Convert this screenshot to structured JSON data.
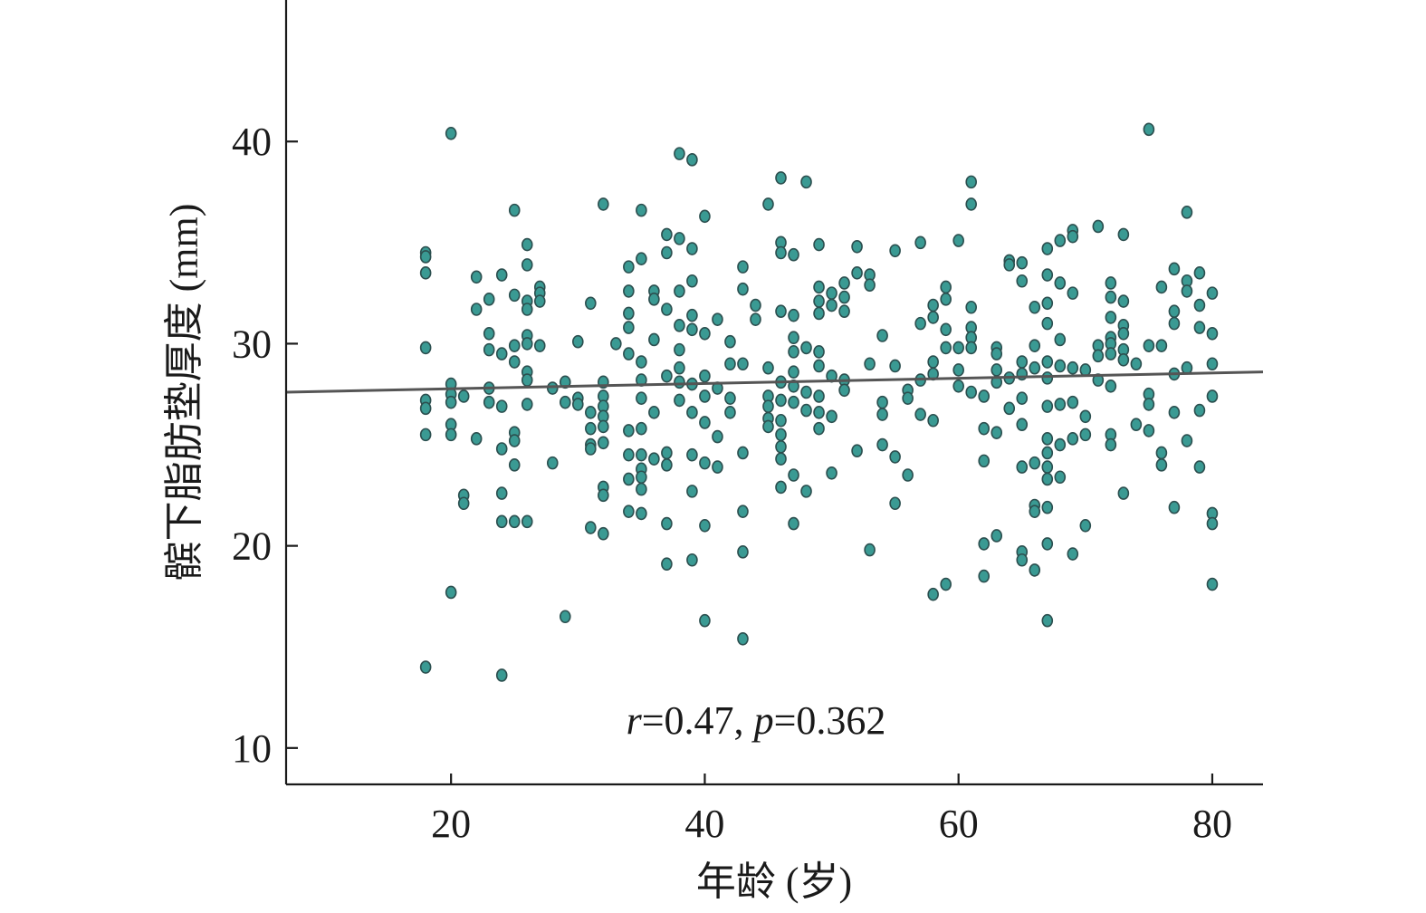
{
  "chart_data": {
    "type": "scatter",
    "xlabel": "年龄 (岁)",
    "ylabel": "髌下脂肪垫厚度 (mm)",
    "xlim": [
      7,
      84
    ],
    "ylim": [
      8.2,
      47
    ],
    "x_ticks": [
      20,
      40,
      60,
      80
    ],
    "y_ticks": [
      10,
      20,
      30,
      40
    ],
    "x_tick_labels": [
      "20",
      "40",
      "60",
      "80"
    ],
    "y_tick_labels": [
      "10",
      "20",
      "30",
      "40"
    ],
    "grid": false,
    "legend": "none",
    "colors": {
      "point": "#3a9a93",
      "point_edge": "#2c4f4f",
      "fit_line": "#555555",
      "axis": "#1a1a1a"
    },
    "annotation": {
      "r_label": "r",
      "r_value": "=0.47, ",
      "p_label": "p",
      "p_value": "=0.362"
    },
    "fit_line": {
      "x": [
        7,
        84
      ],
      "y": [
        27.6,
        28.6
      ]
    },
    "points": [
      [
        18,
        34.5
      ],
      [
        18,
        34.3
      ],
      [
        18,
        33.5
      ],
      [
        18,
        29.8
      ],
      [
        18,
        27.2
      ],
      [
        18,
        26.8
      ],
      [
        18,
        25.5
      ],
      [
        18,
        14
      ],
      [
        20,
        40.4
      ],
      [
        20,
        28
      ],
      [
        20,
        27.5
      ],
      [
        20,
        27.1
      ],
      [
        20,
        26
      ],
      [
        20,
        25.5
      ],
      [
        20,
        17.7
      ],
      [
        21,
        27.4
      ],
      [
        21,
        22.5
      ],
      [
        21,
        22.1
      ],
      [
        22,
        33.3
      ],
      [
        22,
        31.7
      ],
      [
        22,
        25.3
      ],
      [
        23,
        32.2
      ],
      [
        23,
        30.5
      ],
      [
        23,
        29.7
      ],
      [
        23,
        27.8
      ],
      [
        23,
        27.1
      ],
      [
        24,
        33.4
      ],
      [
        24,
        29.5
      ],
      [
        24,
        26.9
      ],
      [
        24,
        24.8
      ],
      [
        24,
        22.6
      ],
      [
        24,
        21.2
      ],
      [
        24,
        13.6
      ],
      [
        25,
        36.6
      ],
      [
        25,
        32.4
      ],
      [
        25,
        29.9
      ],
      [
        25,
        29.1
      ],
      [
        25,
        25.6
      ],
      [
        25,
        25.2
      ],
      [
        25,
        24
      ],
      [
        25,
        21.2
      ],
      [
        26,
        34.9
      ],
      [
        26,
        33.9
      ],
      [
        26,
        32.1
      ],
      [
        26,
        31.7
      ],
      [
        26,
        30.4
      ],
      [
        26,
        30
      ],
      [
        26,
        28.6
      ],
      [
        26,
        28.2
      ],
      [
        26,
        27
      ],
      [
        26,
        21.2
      ],
      [
        27,
        32.8
      ],
      [
        27,
        32.5
      ],
      [
        27,
        32.1
      ],
      [
        27,
        29.9
      ],
      [
        28,
        27.8
      ],
      [
        28,
        24.1
      ],
      [
        29,
        28.1
      ],
      [
        29,
        27.1
      ],
      [
        29,
        16.5
      ],
      [
        30,
        30.1
      ],
      [
        30,
        27.3
      ],
      [
        30,
        27
      ],
      [
        31,
        32
      ],
      [
        31,
        26.6
      ],
      [
        31,
        25.8
      ],
      [
        31,
        25
      ],
      [
        31,
        24.8
      ],
      [
        31,
        20.9
      ],
      [
        32,
        36.9
      ],
      [
        32,
        28.1
      ],
      [
        32,
        27.4
      ],
      [
        32,
        26.9
      ],
      [
        32,
        26.4
      ],
      [
        32,
        25.9
      ],
      [
        32,
        25.1
      ],
      [
        32,
        22.9
      ],
      [
        32,
        22.5
      ],
      [
        32,
        20.6
      ],
      [
        33,
        30
      ],
      [
        34,
        33.8
      ],
      [
        34,
        32.6
      ],
      [
        34,
        31.5
      ],
      [
        34,
        30.8
      ],
      [
        34,
        29.5
      ],
      [
        34,
        25.7
      ],
      [
        34,
        24.5
      ],
      [
        34,
        23.3
      ],
      [
        34,
        21.7
      ],
      [
        35,
        36.6
      ],
      [
        35,
        34.2
      ],
      [
        35,
        29.1
      ],
      [
        35,
        28.2
      ],
      [
        35,
        27.3
      ],
      [
        35,
        25.8
      ],
      [
        35,
        24.5
      ],
      [
        35,
        23.8
      ],
      [
        35,
        23.4
      ],
      [
        35,
        22.8
      ],
      [
        35,
        21.6
      ],
      [
        36,
        32.6
      ],
      [
        36,
        32.2
      ],
      [
        36,
        30.2
      ],
      [
        36,
        26.6
      ],
      [
        36,
        24.3
      ],
      [
        37,
        35.4
      ],
      [
        37,
        34.5
      ],
      [
        37,
        31.7
      ],
      [
        37,
        28.4
      ],
      [
        37,
        24.6
      ],
      [
        37,
        24
      ],
      [
        37,
        21.1
      ],
      [
        37,
        19.1
      ],
      [
        38,
        39.4
      ],
      [
        38,
        35.2
      ],
      [
        38,
        32.6
      ],
      [
        38,
        30.9
      ],
      [
        38,
        29.7
      ],
      [
        38,
        28.8
      ],
      [
        38,
        28.1
      ],
      [
        38,
        27.2
      ],
      [
        39,
        39.1
      ],
      [
        39,
        34.7
      ],
      [
        39,
        33.1
      ],
      [
        39,
        31.4
      ],
      [
        39,
        30.7
      ],
      [
        39,
        28
      ],
      [
        39,
        26.6
      ],
      [
        39,
        24.5
      ],
      [
        39,
        22.7
      ],
      [
        39,
        19.3
      ],
      [
        40,
        36.3
      ],
      [
        40,
        30.5
      ],
      [
        40,
        28.4
      ],
      [
        40,
        27.4
      ],
      [
        40,
        26.1
      ],
      [
        40,
        24.1
      ],
      [
        40,
        21
      ],
      [
        40,
        16.3
      ],
      [
        41,
        31.2
      ],
      [
        41,
        27.8
      ],
      [
        41,
        25.4
      ],
      [
        41,
        23.9
      ],
      [
        42,
        30.1
      ],
      [
        42,
        29
      ],
      [
        42,
        27.3
      ],
      [
        42,
        26.6
      ],
      [
        43,
        33.8
      ],
      [
        43,
        32.7
      ],
      [
        43,
        29
      ],
      [
        43,
        24.6
      ],
      [
        43,
        21.7
      ],
      [
        43,
        19.7
      ],
      [
        43,
        15.4
      ],
      [
        44,
        31.9
      ],
      [
        44,
        31.2
      ],
      [
        45,
        36.9
      ],
      [
        45,
        28.8
      ],
      [
        45,
        27.4
      ],
      [
        45,
        26.9
      ],
      [
        45,
        26.3
      ],
      [
        45,
        25.9
      ],
      [
        46,
        38.2
      ],
      [
        46,
        35
      ],
      [
        46,
        34.5
      ],
      [
        46,
        31.6
      ],
      [
        46,
        28.1
      ],
      [
        46,
        27.2
      ],
      [
        46,
        26.2
      ],
      [
        46,
        25.5
      ],
      [
        46,
        24.9
      ],
      [
        46,
        24.3
      ],
      [
        46,
        22.9
      ],
      [
        47,
        34.4
      ],
      [
        47,
        31.4
      ],
      [
        47,
        30.3
      ],
      [
        47,
        29.6
      ],
      [
        47,
        28.6
      ],
      [
        47,
        27.9
      ],
      [
        47,
        27.1
      ],
      [
        47,
        23.5
      ],
      [
        47,
        21.1
      ],
      [
        48,
        38
      ],
      [
        48,
        29.8
      ],
      [
        48,
        27.6
      ],
      [
        48,
        26.7
      ],
      [
        48,
        22.7
      ],
      [
        49,
        34.9
      ],
      [
        49,
        32.8
      ],
      [
        49,
        32.1
      ],
      [
        49,
        31.5
      ],
      [
        49,
        29.6
      ],
      [
        49,
        28.9
      ],
      [
        49,
        27.4
      ],
      [
        49,
        26.6
      ],
      [
        49,
        25.8
      ],
      [
        50,
        32.5
      ],
      [
        50,
        31.9
      ],
      [
        50,
        28.4
      ],
      [
        50,
        26.4
      ],
      [
        50,
        23.6
      ],
      [
        51,
        33
      ],
      [
        51,
        32.3
      ],
      [
        51,
        31.6
      ],
      [
        51,
        28.2
      ],
      [
        51,
        27.7
      ],
      [
        52,
        34.8
      ],
      [
        52,
        33.5
      ],
      [
        52,
        24.7
      ],
      [
        53,
        33.4
      ],
      [
        53,
        32.9
      ],
      [
        53,
        29
      ],
      [
        53,
        19.8
      ],
      [
        54,
        30.4
      ],
      [
        54,
        27.1
      ],
      [
        54,
        26.5
      ],
      [
        54,
        25
      ],
      [
        55,
        34.6
      ],
      [
        55,
        28.9
      ],
      [
        55,
        24.4
      ],
      [
        55,
        22.1
      ],
      [
        56,
        27.7
      ],
      [
        56,
        27.3
      ],
      [
        56,
        23.5
      ],
      [
        57,
        35
      ],
      [
        57,
        31
      ],
      [
        57,
        28.2
      ],
      [
        57,
        26.5
      ],
      [
        58,
        31.9
      ],
      [
        58,
        31.3
      ],
      [
        58,
        29.1
      ],
      [
        58,
        28.5
      ],
      [
        58,
        26.2
      ],
      [
        58,
        17.6
      ],
      [
        59,
        32.8
      ],
      [
        59,
        32.2
      ],
      [
        59,
        30.7
      ],
      [
        59,
        29.8
      ],
      [
        59,
        18.1
      ],
      [
        60,
        35.1
      ],
      [
        60,
        29.8
      ],
      [
        60,
        28.7
      ],
      [
        60,
        27.9
      ],
      [
        61,
        38
      ],
      [
        61,
        36.9
      ],
      [
        61,
        31.8
      ],
      [
        61,
        30.8
      ],
      [
        61,
        30.3
      ],
      [
        61,
        29.8
      ],
      [
        61,
        27.6
      ],
      [
        62,
        27.4
      ],
      [
        62,
        25.8
      ],
      [
        62,
        24.2
      ],
      [
        62,
        20.1
      ],
      [
        62,
        18.5
      ],
      [
        63,
        29.8
      ],
      [
        63,
        29.5
      ],
      [
        63,
        28.7
      ],
      [
        63,
        28.1
      ],
      [
        63,
        25.6
      ],
      [
        63,
        20.5
      ],
      [
        64,
        34.1
      ],
      [
        64,
        33.9
      ],
      [
        64,
        28.3
      ],
      [
        64,
        26.8
      ],
      [
        65,
        34
      ],
      [
        65,
        33.1
      ],
      [
        65,
        29.1
      ],
      [
        65,
        28.5
      ],
      [
        65,
        27.3
      ],
      [
        65,
        26
      ],
      [
        65,
        23.9
      ],
      [
        65,
        19.7
      ],
      [
        65,
        19.3
      ],
      [
        66,
        31.8
      ],
      [
        66,
        29.9
      ],
      [
        66,
        28.8
      ],
      [
        66,
        24.1
      ],
      [
        66,
        22
      ],
      [
        66,
        21.7
      ],
      [
        66,
        18.8
      ],
      [
        67,
        34.7
      ],
      [
        67,
        33.4
      ],
      [
        67,
        32
      ],
      [
        67,
        31
      ],
      [
        67,
        29.1
      ],
      [
        67,
        28.3
      ],
      [
        67,
        26.9
      ],
      [
        67,
        25.3
      ],
      [
        67,
        24.6
      ],
      [
        67,
        23.9
      ],
      [
        67,
        23.3
      ],
      [
        67,
        21.9
      ],
      [
        67,
        20.1
      ],
      [
        67,
        16.3
      ],
      [
        68,
        35.1
      ],
      [
        68,
        33
      ],
      [
        68,
        30.2
      ],
      [
        68,
        28.9
      ],
      [
        68,
        27
      ],
      [
        68,
        25
      ],
      [
        68,
        23.4
      ],
      [
        69,
        35.6
      ],
      [
        69,
        35.3
      ],
      [
        69,
        32.5
      ],
      [
        69,
        28.8
      ],
      [
        69,
        27.1
      ],
      [
        69,
        25.3
      ],
      [
        69,
        19.6
      ],
      [
        70,
        28.7
      ],
      [
        70,
        26.4
      ],
      [
        70,
        25.5
      ],
      [
        70,
        21
      ],
      [
        71,
        35.8
      ],
      [
        71,
        29.9
      ],
      [
        71,
        29.4
      ],
      [
        71,
        28.2
      ],
      [
        72,
        33
      ],
      [
        72,
        32.3
      ],
      [
        72,
        31.3
      ],
      [
        72,
        30.3
      ],
      [
        72,
        30
      ],
      [
        72,
        29.5
      ],
      [
        72,
        27.9
      ],
      [
        72,
        25.5
      ],
      [
        72,
        25
      ],
      [
        73,
        35.4
      ],
      [
        73,
        32.1
      ],
      [
        73,
        30.9
      ],
      [
        73,
        30.5
      ],
      [
        73,
        29.7
      ],
      [
        73,
        29.2
      ],
      [
        73,
        22.6
      ],
      [
        74,
        29
      ],
      [
        74,
        26
      ],
      [
        75,
        40.6
      ],
      [
        75,
        29.9
      ],
      [
        75,
        27.5
      ],
      [
        75,
        27
      ],
      [
        75,
        25.7
      ],
      [
        76,
        32.8
      ],
      [
        76,
        29.9
      ],
      [
        76,
        24.6
      ],
      [
        76,
        24
      ],
      [
        77,
        33.7
      ],
      [
        77,
        31.6
      ],
      [
        77,
        31
      ],
      [
        77,
        28.5
      ],
      [
        77,
        26.6
      ],
      [
        77,
        21.9
      ],
      [
        78,
        36.5
      ],
      [
        78,
        33.1
      ],
      [
        78,
        32.6
      ],
      [
        78,
        28.8
      ],
      [
        78,
        25.2
      ],
      [
        79,
        33.5
      ],
      [
        79,
        31.9
      ],
      [
        79,
        30.8
      ],
      [
        79,
        26.7
      ],
      [
        79,
        23.9
      ],
      [
        80,
        32.5
      ],
      [
        80,
        30.5
      ],
      [
        80,
        29
      ],
      [
        80,
        27.4
      ],
      [
        80,
        21.6
      ],
      [
        80,
        21.1
      ],
      [
        80,
        18.1
      ]
    ]
  }
}
